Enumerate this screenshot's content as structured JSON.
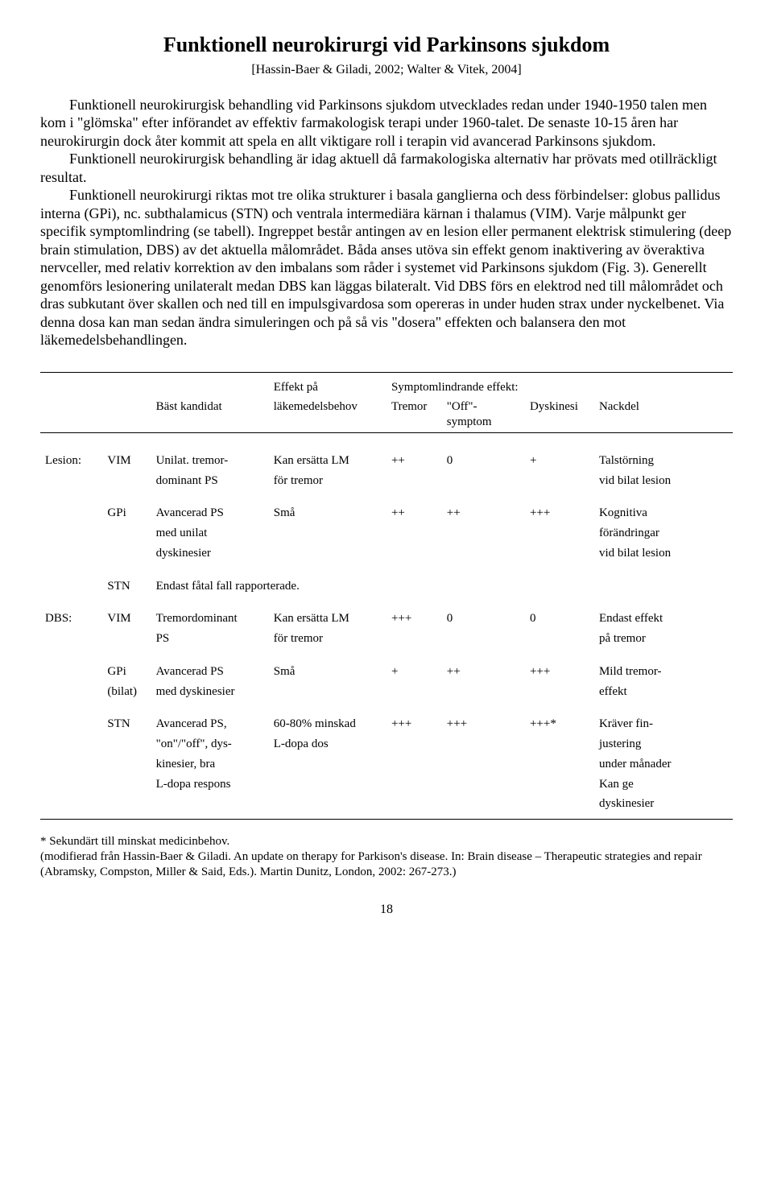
{
  "title": "Funktionell neurokirurgi vid Parkinsons sjukdom",
  "subref": "[Hassin-Baer & Giladi, 2002; Walter & Vitek, 2004]",
  "p1": "Funktionell neurokirurgisk behandling vid Parkinsons sjukdom utvecklades redan under 1940-1950 talen men kom i \"glömska\" efter införandet av effektiv farmakologisk terapi under 1960-talet. De senaste 10-15 åren har neurokirurgin dock åter kommit att spela en allt viktigare roll i terapin vid avancerad Parkinsons sjukdom.",
  "p2": "Funktionell neurokirurgisk behandling är idag aktuell då farmakologiska alternativ har prövats med otillräckligt resultat.",
  "p3": "Funktionell neurokirurgi riktas mot tre olika strukturer i basala ganglierna och dess förbindelser: globus pallidus interna (GPi), nc. subthalamicus (STN) och ventrala intermediära kärnan i thalamus (VIM). Varje målpunkt ger specifik symptomlindring (se tabell). Ingreppet består antingen av en lesion eller permanent elektrisk stimulering (deep brain stimulation, DBS) av det aktuella målområdet. Båda anses utöva sin effekt genom inaktivering av överaktiva nervceller, med relativ korrektion av den imbalans som råder i systemet vid Parkinsons sjukdom (Fig. 3). Generellt genomförs lesionering unilateralt medan DBS kan läggas bilateralt. Vid DBS förs en elektrod ned till målområdet och dras subkutant över skallen och ned till en impulsgivardosa som opereras in under huden strax under nyckelbenet. Via denna dosa kan man sedan ändra simuleringen och på så vis \"dosera\" effekten och balansera den mot läkemedelsbehandlingen.",
  "table": {
    "headers": {
      "bast": "Bäst kandidat",
      "effekt_l1": "Effekt på",
      "effekt_l2": "läkemedelsbehov",
      "symptom_l1": "Symptomlindrande effekt:",
      "tremor": "Tremor",
      "off": "\"Off\"-symptom",
      "dyskinesi": "Dyskinesi",
      "nackdel": "Nackdel"
    },
    "groups": {
      "lesion": "Lesion:",
      "dbs": "DBS:"
    },
    "rows": {
      "l_vim": {
        "target": "VIM",
        "cand_l1": "Unilat. tremor-",
        "cand_l2": "dominant PS",
        "effekt_l1": "Kan ersätta LM",
        "effekt_l2": "för tremor",
        "tremor": "++",
        "off": "0",
        "dys": "+",
        "nack_l1": "Talstörning",
        "nack_l2": "vid bilat lesion"
      },
      "l_gpi": {
        "target": "GPi",
        "cand_l1": "Avancerad PS",
        "cand_l2": "med unilat",
        "cand_l3": "dyskinesier",
        "effekt_l1": "Små",
        "tremor": "++",
        "off": "++",
        "dys": "+++",
        "nack_l1": "Kognitiva",
        "nack_l2": "förändringar",
        "nack_l3": "vid bilat lesion"
      },
      "l_stn": {
        "target": "STN",
        "cand_l1": "Endast fåtal fall rapporterade."
      },
      "d_vim": {
        "target": "VIM",
        "cand_l1": "Tremordominant",
        "cand_l2": "PS",
        "effekt_l1": "Kan ersätta LM",
        "effekt_l2": "för tremor",
        "tremor": "+++",
        "off": "0",
        "dys": "0",
        "nack_l1": "Endast effekt",
        "nack_l2": "på tremor"
      },
      "d_gpi": {
        "target_l1": "GPi",
        "target_l2": "(bilat)",
        "cand_l1": "Avancerad PS",
        "cand_l2": "med dyskinesier",
        "effekt_l1": "Små",
        "tremor": "+",
        "off": "++",
        "dys": "+++",
        "nack_l1": "Mild tremor-",
        "nack_l2": "effekt"
      },
      "d_stn": {
        "target": "STN",
        "cand_l1": "Avancerad PS,",
        "cand_l2": "\"on\"/\"off\", dys-",
        "cand_l3": "kinesier, bra",
        "cand_l4": "L-dopa respons",
        "effekt_l1": "60-80% minskad",
        "effekt_l2": "L-dopa dos",
        "tremor": "+++",
        "off": "+++",
        "dys": "+++*",
        "nack_l1": "Kräver fin-",
        "nack_l2": "justering",
        "nack_l3": "under månader",
        "nack_l4": "Kan ge",
        "nack_l5": "dyskinesier"
      }
    }
  },
  "footnote_l1": "* Sekundärt till minskat medicinbehov.",
  "footnote_l2": "(modifierad från Hassin-Baer & Giladi. An update on therapy for Parkison's disease. In: Brain disease – Therapeutic strategies and repair (Abramsky, Compston, Miller & Said, Eds.). Martin Dunitz, London, 2002: 267-273.)",
  "pagenum": "18"
}
